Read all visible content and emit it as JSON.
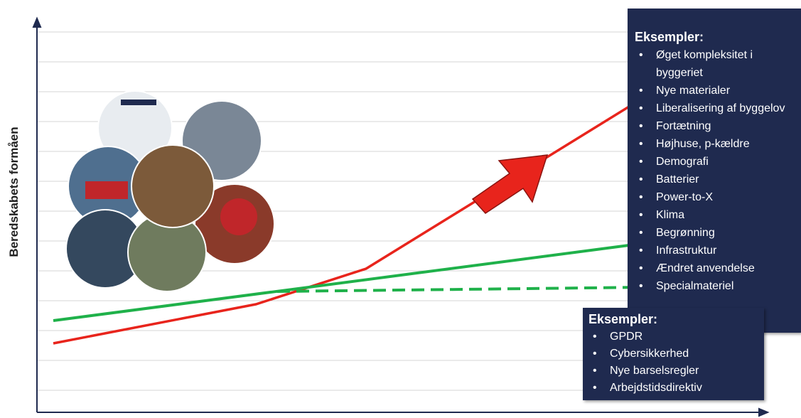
{
  "y_axis_label": "Beredskabets formåen",
  "boxes": [
    {
      "title": "Eksempler:",
      "items": [
        "Øget kompleksitet i byggeriet",
        "Nye materialer",
        "Liberalisering af byggelov",
        "Fortætning",
        "Højhuse, p-kældre",
        "Demografi",
        "Batterier",
        "Power-to-X",
        "Klima",
        "Begrønning",
        "Infrastruktur",
        "Ændret anvendelse",
        "Specialmateriel"
      ]
    },
    {
      "title": "Eksempler:",
      "items": [
        "GPDR",
        "Cybersikkerhed",
        "Nye barselsregler",
        "Arbejdstidsdirektiv"
      ]
    }
  ]
}
